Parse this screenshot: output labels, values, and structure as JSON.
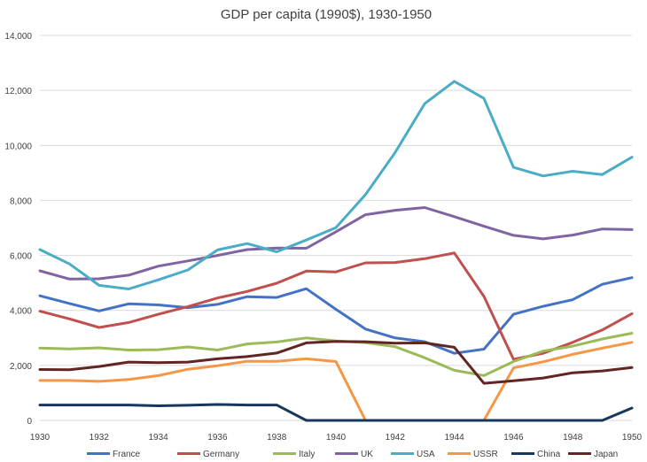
{
  "chart_data": {
    "type": "line",
    "title": "GDP per capita (1990$), 1930-1950",
    "xlabel": "",
    "ylabel": "",
    "x": [
      1930,
      1931,
      1932,
      1933,
      1934,
      1935,
      1936,
      1937,
      1938,
      1939,
      1940,
      1941,
      1942,
      1943,
      1944,
      1945,
      1946,
      1947,
      1948,
      1949,
      1950
    ],
    "x_ticks": [
      "1930",
      "1932",
      "1934",
      "1936",
      "1938",
      "1940",
      "1942",
      "1944",
      "1946",
      "1948",
      "1950"
    ],
    "ylim": [
      0,
      14000
    ],
    "y_ticks": [
      "0",
      "2,000",
      "4,000",
      "6,000",
      "8,000",
      "10,000",
      "12,000",
      "14,000"
    ],
    "grid": true,
    "legend_position": "bottom",
    "series": [
      {
        "name": "France",
        "color": "#4472c4",
        "values": [
          4530,
          4250,
          3980,
          4240,
          4200,
          4100,
          4220,
          4500,
          4470,
          4790,
          4040,
          3320,
          3000,
          2860,
          2440,
          2590,
          3860,
          4150,
          4390,
          4950,
          5190
        ]
      },
      {
        "name": "Germany",
        "color": "#c0504d",
        "values": [
          3970,
          3690,
          3380,
          3560,
          3860,
          4140,
          4450,
          4690,
          4990,
          5430,
          5400,
          5730,
          5740,
          5880,
          6090,
          4510,
          2220,
          2440,
          2840,
          3290,
          3880
        ]
      },
      {
        "name": "Italy",
        "color": "#9bbb59",
        "values": [
          2630,
          2600,
          2640,
          2560,
          2570,
          2670,
          2560,
          2780,
          2850,
          3000,
          2890,
          2830,
          2680,
          2280,
          1820,
          1630,
          2140,
          2520,
          2700,
          2960,
          3170
        ]
      },
      {
        "name": "UK",
        "color": "#8064a2",
        "values": [
          5440,
          5140,
          5150,
          5280,
          5610,
          5800,
          6000,
          6210,
          6270,
          6260,
          6860,
          7480,
          7640,
          7740,
          7410,
          7060,
          6730,
          6600,
          6740,
          6960,
          6940
        ]
      },
      {
        "name": "USA",
        "color": "#4bacc6",
        "values": [
          6210,
          5690,
          4910,
          4780,
          5110,
          5470,
          6200,
          6430,
          6130,
          6560,
          7010,
          8210,
          9740,
          11520,
          12330,
          11710,
          9200,
          8890,
          9060,
          8940,
          9570
        ]
      },
      {
        "name": "USSR",
        "color": "#f79646",
        "values": [
          1450,
          1450,
          1420,
          1490,
          1630,
          1860,
          1990,
          2150,
          2150,
          2240,
          2140,
          0,
          0,
          0,
          0,
          0,
          1910,
          2130,
          2400,
          2630,
          2840
        ]
      },
      {
        "name": "China",
        "color": "#17375e",
        "values": [
          560,
          560,
          560,
          560,
          530,
          550,
          580,
          560,
          560,
          0,
          0,
          0,
          0,
          0,
          0,
          0,
          0,
          0,
          0,
          0,
          450
        ]
      },
      {
        "name": "Japan",
        "color": "#632523",
        "values": [
          1850,
          1840,
          1960,
          2120,
          2100,
          2120,
          2240,
          2320,
          2450,
          2820,
          2870,
          2860,
          2810,
          2820,
          2660,
          1350,
          1440,
          1540,
          1730,
          1800,
          1920
        ]
      }
    ]
  }
}
